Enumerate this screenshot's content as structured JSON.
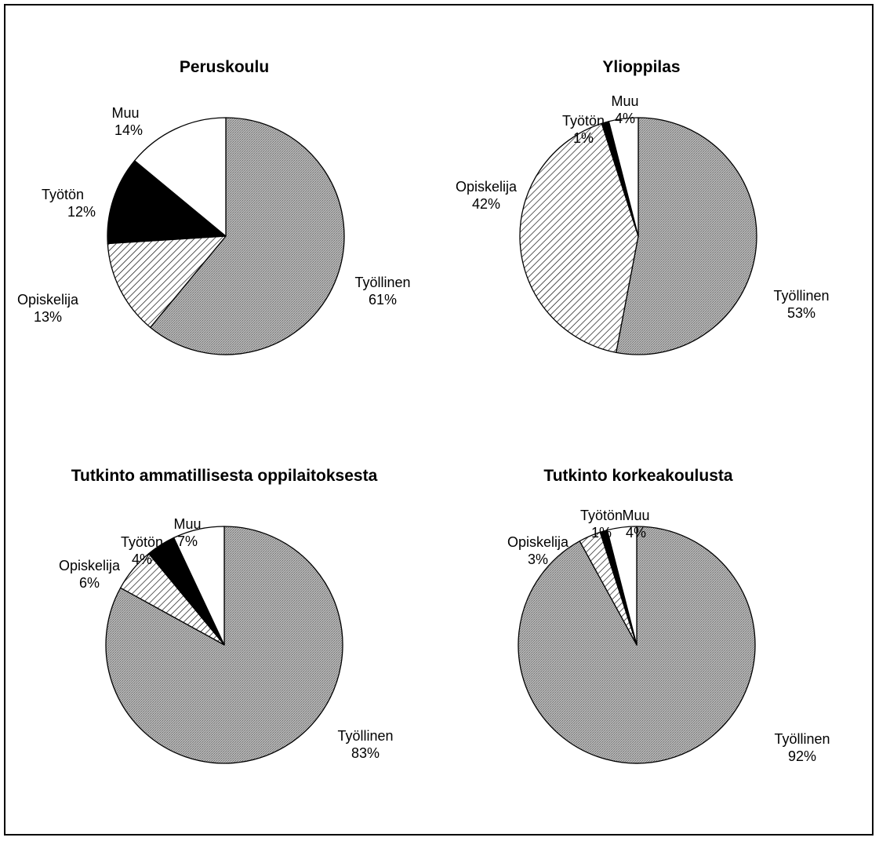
{
  "figure": {
    "colors": {
      "Työllinen": "#a9a9a9",
      "Opiskelija": "hatch",
      "Työtön": "#000000",
      "Muu": "#ffffff"
    }
  },
  "chart_data": [
    {
      "type": "pie",
      "title": "Peruskoulu",
      "slices": [
        {
          "label": "Työllinen",
          "value": 61,
          "text": "61%"
        },
        {
          "label": "Opiskelija",
          "value": 13,
          "text": "13%"
        },
        {
          "label": "Työtön",
          "value": 12,
          "text": "12%"
        },
        {
          "label": "Muu",
          "value": 14,
          "text": "14%"
        }
      ]
    },
    {
      "type": "pie",
      "title": "Ylioppilas",
      "slices": [
        {
          "label": "Työllinen",
          "value": 53,
          "text": "53%"
        },
        {
          "label": "Opiskelija",
          "value": 42,
          "text": "42%"
        },
        {
          "label": "Työtön",
          "value": 1,
          "text": "1%"
        },
        {
          "label": "Muu",
          "value": 4,
          "text": "4%"
        }
      ]
    },
    {
      "type": "pie",
      "title": "Tutkinto ammatillisesta oppilaitoksesta",
      "slices": [
        {
          "label": "Työllinen",
          "value": 83,
          "text": "83%"
        },
        {
          "label": "Opiskelija",
          "value": 6,
          "text": "6%"
        },
        {
          "label": "Työtön",
          "value": 4,
          "text": "4%"
        },
        {
          "label": "Muu",
          "value": 7,
          "text": "7%"
        }
      ]
    },
    {
      "type": "pie",
      "title": "Tutkinto korkeakoulusta",
      "slices": [
        {
          "label": "Työllinen",
          "value": 92,
          "text": "92%"
        },
        {
          "label": "Opiskelija",
          "value": 3,
          "text": "3%"
        },
        {
          "label": "Työtön",
          "value": 1,
          "text": "1%"
        },
        {
          "label": "Muu",
          "value": 4,
          "text": "4%"
        }
      ]
    }
  ]
}
